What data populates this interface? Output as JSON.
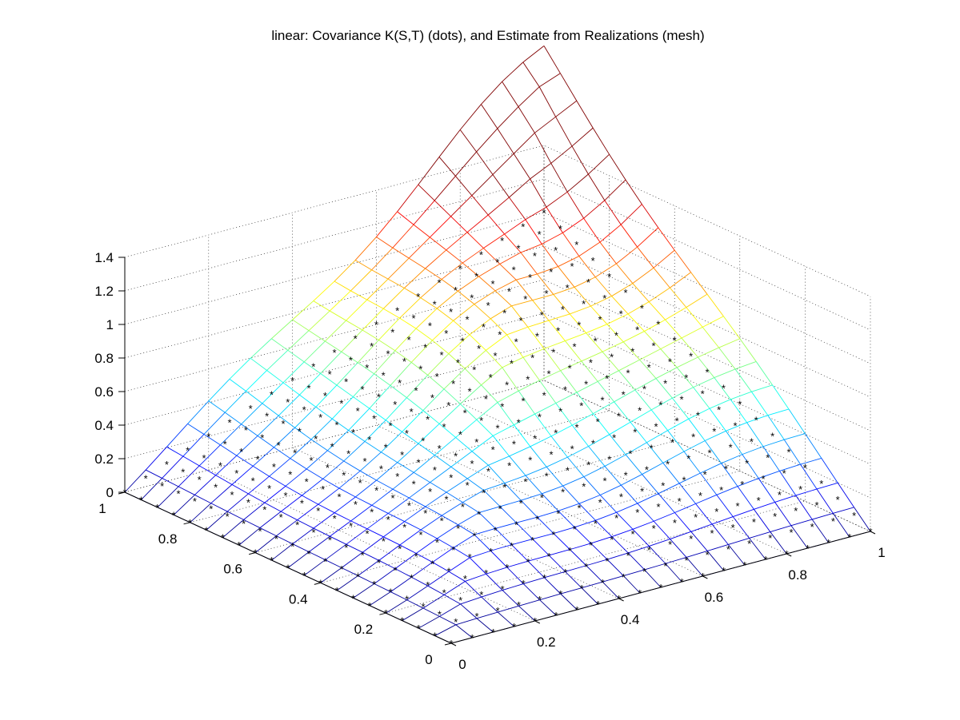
{
  "chart_data": {
    "type": "surface-3d",
    "title": "linear: Covariance K(S,T) (dots), and Estimate from Realizations (mesh)",
    "xlabel": "",
    "ylabel": "",
    "zlabel": "",
    "xlim": [
      0,
      1
    ],
    "ylim": [
      0,
      1
    ],
    "zlim": [
      0,
      1.4
    ],
    "x_ticks": [
      0,
      0.2,
      0.4,
      0.6,
      0.8,
      1
    ],
    "y_ticks": [
      0,
      0.2,
      0.4,
      0.6,
      0.8,
      1
    ],
    "z_ticks": [
      0,
      0.2,
      0.4,
      0.6,
      0.8,
      1,
      1.2,
      1.4
    ],
    "x_tick_labels": [
      "0",
      "0.2",
      "0.4",
      "0.6",
      "0.8",
      "1"
    ],
    "y_tick_labels": [
      "0",
      "0.2",
      "0.4",
      "0.6",
      "0.8",
      "1"
    ],
    "z_tick_labels": [
      "0",
      "0.2",
      "0.4",
      "0.6",
      "0.8",
      "1",
      "1.2",
      "1.4"
    ],
    "grid": true,
    "colormap": "jet",
    "series": [
      {
        "kind": "mesh",
        "grid_n": 21,
        "formula": "K(s,t) = min(s,t) estimated from realizations",
        "peak": {
          "x": 1,
          "y": 1,
          "z": 1.4
        }
      },
      {
        "kind": "dots",
        "grid_n": 21,
        "marker": "*",
        "color": "#000000",
        "formula": "K(s,t) = min(s,t)",
        "peak": {
          "x": 1,
          "y": 1,
          "z": 1.0
        }
      }
    ]
  }
}
